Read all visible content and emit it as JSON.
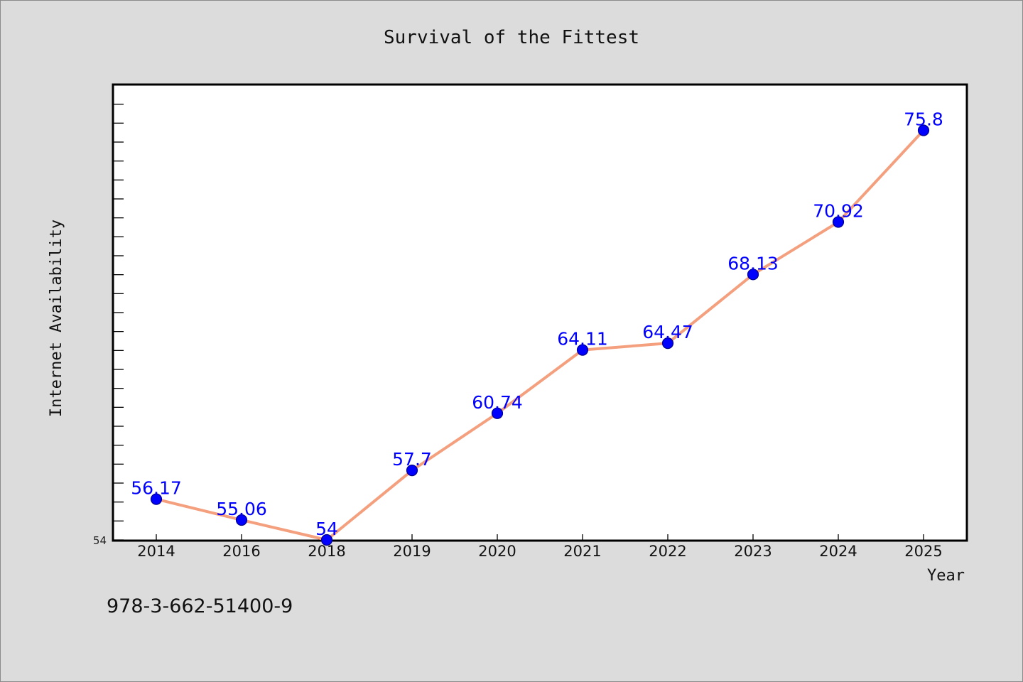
{
  "chart_data": {
    "type": "line",
    "title": "Survival of the Fittest",
    "xlabel": "Year",
    "ylabel": "Internet Availability",
    "categories": [
      "2014",
      "2016",
      "2018",
      "2019",
      "2020",
      "2021",
      "2022",
      "2023",
      "2024",
      "2025"
    ],
    "series": [
      {
        "values": [
          56.17,
          55.06,
          54,
          57.7,
          60.74,
          64.11,
          64.47,
          68.13,
          70.92,
          75.8
        ],
        "labels": [
          "56.17",
          "55.06",
          "54",
          "57.7",
          "60.74",
          "64.11",
          "64.47",
          "68.13",
          "70.92",
          "75.8"
        ]
      }
    ],
    "ylim": [
      54,
      78.2
    ],
    "y_tick_labels": [
      "54"
    ],
    "grid": false,
    "colors": {
      "line": "#f4a07e",
      "marker": "#0000ff",
      "marker_edge": "#00008b",
      "data_label": "#0000ff",
      "plot_background": "#ffffff",
      "figure_background": "#dcdcdc"
    }
  },
  "footer": {
    "isbn": "978-3-662-51400-9"
  }
}
